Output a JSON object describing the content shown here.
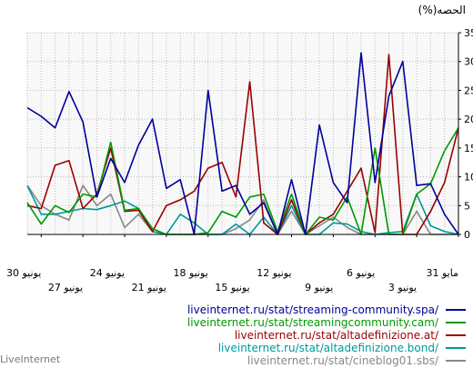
{
  "brand": "LiveInternet",
  "chart_data": {
    "type": "line",
    "ylabel": "(%)الحصه",
    "ylim": [
      0,
      35
    ],
    "y_ticks": [
      0,
      5,
      10,
      15,
      20,
      25,
      30,
      35
    ],
    "x": [
      31,
      30,
      29,
      28,
      27,
      26,
      25,
      24,
      23,
      22,
      21,
      20,
      19,
      18,
      17,
      16,
      15,
      14,
      13,
      12,
      11,
      10,
      9,
      8,
      7,
      6,
      5,
      4,
      3,
      2,
      1,
      0
    ],
    "x_labels_top": [
      {
        "x": 0,
        "text": "31 مايو"
      },
      {
        "x": 6,
        "text": "6 يونيو"
      },
      {
        "x": 12,
        "text": "12 يونيو"
      },
      {
        "x": 18,
        "text": "18 يونيو"
      },
      {
        "x": 24,
        "text": "24 يونيو"
      },
      {
        "x": 30,
        "text": "30 يونيو"
      }
    ],
    "x_labels_bottom": [
      {
        "x": 3,
        "text": "3 يونيو"
      },
      {
        "x": 9,
        "text": "9 يونيو"
      },
      {
        "x": 15,
        "text": "15 يونيو"
      },
      {
        "x": 21,
        "text": "21 يونيو"
      },
      {
        "x": 27,
        "text": "27 يونيو"
      }
    ],
    "grid": true,
    "legend_position": "bottom-right",
    "series": [
      {
        "name": "liveinternet.ru/stat/streaming-community.spa/",
        "color": "#000099",
        "values": [
          22,
          20.5,
          18.5,
          24.8,
          19.5,
          6.5,
          13.2,
          9,
          15.5,
          20,
          8,
          9.5,
          0,
          25,
          7.5,
          8.5,
          3.5,
          5.5,
          0,
          9.5,
          0,
          19,
          9,
          5.5,
          31.5,
          9,
          24,
          30,
          8.5,
          8.8,
          3.5,
          0
        ]
      },
      {
        "name": "liveinternet.ru/stat/streamingcommunity.cam/",
        "color": "#009900",
        "values": [
          5.5,
          1.8,
          5,
          3.8,
          7,
          6.5,
          16,
          4.2,
          4.5,
          1,
          0,
          0,
          0,
          0.3,
          4,
          3,
          6.5,
          7,
          0.5,
          7,
          0,
          3,
          2.5,
          6.5,
          0,
          15,
          0,
          0,
          7,
          8.8,
          14.5,
          18.5
        ]
      },
      {
        "name": "liveinternet.ru/stat/altadefinizione.at/",
        "color": "#990000",
        "values": [
          5,
          4.5,
          12,
          12.8,
          4.5,
          7,
          15,
          4,
          4.2,
          0.5,
          5,
          6,
          7.5,
          11.5,
          12.5,
          6.5,
          26.5,
          2,
          0,
          6,
          0,
          2,
          3.5,
          7.5,
          11.5,
          0.3,
          31.2,
          0,
          0,
          4,
          9,
          18.5
        ]
      },
      {
        "name": "liveinternet.ru/stat/altadefinizione.bond/",
        "color": "#009999",
        "values": [
          8.5,
          3.5,
          3.5,
          4,
          4.5,
          4.3,
          5,
          5.8,
          4.5,
          0.5,
          0,
          3.5,
          2,
          0,
          0,
          1.8,
          0,
          3,
          0,
          5,
          0,
          0,
          2,
          1.8,
          0.5,
          0,
          0.3,
          0.5,
          7,
          1.5,
          0.5,
          0
        ]
      },
      {
        "name": "liveinternet.ru/stat/cineblog01.sbs/",
        "color": "#888888",
        "values": [
          8.5,
          5,
          3.5,
          2.5,
          8.5,
          5,
          7,
          1.2,
          3.5,
          0.5,
          0,
          0,
          0,
          0,
          0,
          1,
          2.5,
          6,
          0,
          4,
          0,
          1.5,
          3,
          1.2,
          0,
          0,
          0,
          0,
          4,
          0,
          0,
          0
        ]
      }
    ]
  }
}
